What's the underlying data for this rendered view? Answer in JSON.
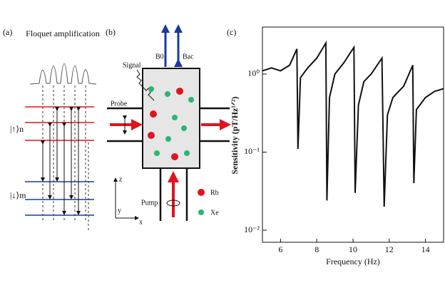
{
  "panel_a": {
    "label": "(a)",
    "title": "Floquet amplification",
    "upper_level": "|↑⟩n",
    "lower_level": "|↓⟩m"
  },
  "panel_b": {
    "label": "(b)",
    "signal": "Signal",
    "b0": "B0",
    "bac": "Bac",
    "probe": "Probe",
    "pump": "Pump",
    "rb": "Rb",
    "xe": "Xe",
    "axis_z": "z",
    "axis_y": "y",
    "axis_x": "x"
  },
  "panel_c": {
    "label": "(c)"
  },
  "chart_data": {
    "type": "line",
    "xlabel": "Frequency (Hz)",
    "ylabel": "Sensitivity (pT/Hz¹ᐟ²)",
    "x": [
      5,
      5.5,
      6,
      6.5,
      6.9,
      6.96,
      7.1,
      7.5,
      8,
      8.5,
      8.56,
      8.7,
      9,
      9.5,
      10.05,
      10.12,
      10.3,
      10.6,
      11,
      11.6,
      11.72,
      11.9,
      12.2,
      12.8,
      13.3,
      13.36,
      13.5,
      14,
      14.5,
      15
    ],
    "values": [
      1.1,
      1.2,
      1.1,
      1.3,
      2.1,
      0.11,
      0.9,
      1.2,
      1.6,
      2.5,
      0.024,
      0.5,
      1.0,
      1.4,
      2.2,
      0.03,
      0.4,
      0.8,
      1.0,
      1.6,
      0.02,
      0.3,
      0.5,
      0.7,
      1.3,
      0.04,
      0.35,
      0.5,
      0.6,
      0.65
    ],
    "color": "#111111",
    "yscale": "log",
    "xlim": [
      5,
      15
    ],
    "xticks": [
      6,
      8,
      10,
      12,
      14
    ],
    "ylim": [
      0.007,
      4
    ],
    "yticks": [
      {
        "value": 0.01,
        "label": "10⁻²"
      },
      {
        "value": 0.1,
        "label": "10⁻¹"
      },
      {
        "value": 1,
        "label": "10⁰"
      }
    ]
  }
}
